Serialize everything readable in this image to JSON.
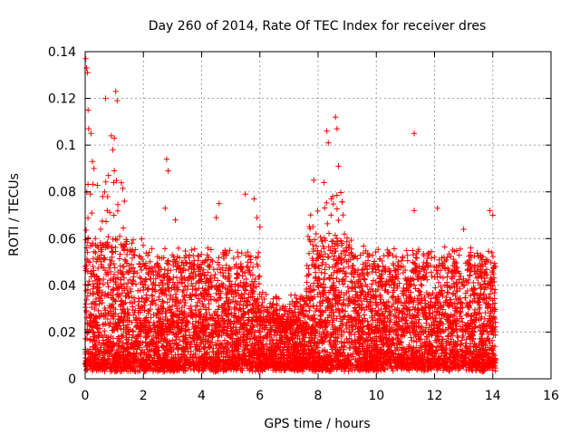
{
  "chart_data": {
    "type": "scatter",
    "title": "Day 260 of 2014, Rate Of TEC Index for receiver dres",
    "xlabel": "GPS time / hours",
    "ylabel": "ROTI / TECUs",
    "xlim": [
      0,
      16
    ],
    "ylim": [
      0,
      0.14
    ],
    "xticks": [
      0,
      2,
      4,
      6,
      8,
      10,
      12,
      14,
      16
    ],
    "yticks": [
      0,
      0.02,
      0.04,
      0.06,
      0.08,
      0.1,
      0.12,
      0.14
    ],
    "xtick_labels": [
      "0",
      "2",
      "4",
      "6",
      "8",
      "10",
      "12",
      "14",
      "16"
    ],
    "ytick_labels": [
      "0",
      "0.02",
      "0.04",
      "0.06",
      "0.08",
      "0.1",
      "0.12",
      "0.14"
    ],
    "grid": true,
    "marker": "+",
    "color": "#ff0000",
    "data_extent": {
      "x_min": 0,
      "x_max": 14.1
    },
    "series": [
      {
        "name": "ROTI",
        "description_points": [
          {
            "x": 0.02,
            "y": 0.137
          },
          {
            "x": 0.05,
            "y": 0.133
          },
          {
            "x": 0.08,
            "y": 0.131
          },
          {
            "x": 0.1,
            "y": 0.115
          },
          {
            "x": 0.12,
            "y": 0.107
          },
          {
            "x": 0.2,
            "y": 0.105
          },
          {
            "x": 0.25,
            "y": 0.093
          },
          {
            "x": 0.3,
            "y": 0.09
          },
          {
            "x": 0.7,
            "y": 0.12
          },
          {
            "x": 1.05,
            "y": 0.123
          },
          {
            "x": 1.1,
            "y": 0.119
          },
          {
            "x": 0.9,
            "y": 0.104
          },
          {
            "x": 1.0,
            "y": 0.103
          },
          {
            "x": 0.95,
            "y": 0.098
          },
          {
            "x": 1.0,
            "y": 0.089
          },
          {
            "x": 0.8,
            "y": 0.087
          },
          {
            "x": 0.6,
            "y": 0.078
          },
          {
            "x": 1.35,
            "y": 0.076
          },
          {
            "x": 2.8,
            "y": 0.094
          },
          {
            "x": 2.85,
            "y": 0.089
          },
          {
            "x": 2.75,
            "y": 0.073
          },
          {
            "x": 3.1,
            "y": 0.068
          },
          {
            "x": 4.6,
            "y": 0.075
          },
          {
            "x": 4.5,
            "y": 0.069
          },
          {
            "x": 5.5,
            "y": 0.079
          },
          {
            "x": 5.8,
            "y": 0.077
          },
          {
            "x": 5.9,
            "y": 0.069
          },
          {
            "x": 6.0,
            "y": 0.065
          },
          {
            "x": 7.85,
            "y": 0.085
          },
          {
            "x": 8.3,
            "y": 0.106
          },
          {
            "x": 8.35,
            "y": 0.101
          },
          {
            "x": 8.6,
            "y": 0.112
          },
          {
            "x": 8.65,
            "y": 0.107
          },
          {
            "x": 8.7,
            "y": 0.091
          },
          {
            "x": 8.2,
            "y": 0.084
          },
          {
            "x": 8.5,
            "y": 0.078
          },
          {
            "x": 11.3,
            "y": 0.105
          },
          {
            "x": 12.1,
            "y": 0.073
          },
          {
            "x": 11.3,
            "y": 0.072
          },
          {
            "x": 13.9,
            "y": 0.072
          },
          {
            "x": 14.0,
            "y": 0.07
          },
          {
            "x": 13.0,
            "y": 0.064
          }
        ],
        "dense_band": [
          {
            "x_from": 0,
            "x_to": 2,
            "y_low": 0.005,
            "y_high": 0.06
          },
          {
            "x_from": 2,
            "x_to": 6,
            "y_low": 0.005,
            "y_high": 0.055
          },
          {
            "x_from": 6,
            "x_to": 7.6,
            "y_low": 0.005,
            "y_high": 0.035
          },
          {
            "x_from": 7.6,
            "x_to": 9.2,
            "y_low": 0.005,
            "y_high": 0.06
          },
          {
            "x_from": 9.2,
            "x_to": 14.1,
            "y_low": 0.005,
            "y_high": 0.055
          }
        ]
      }
    ]
  }
}
